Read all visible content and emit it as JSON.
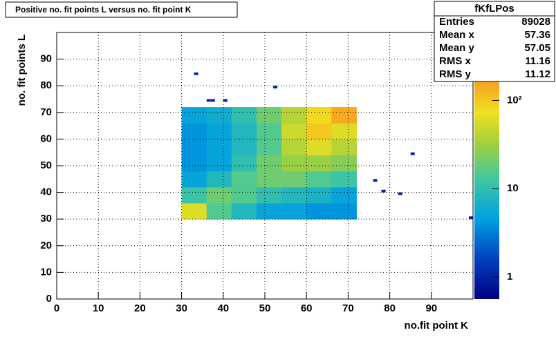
{
  "chart_data": {
    "type": "heatmap",
    "title": "Positive no. fit points L versus no. fit point K",
    "xlabel": "no.fit point K",
    "ylabel": "no. fit points  L",
    "xlim": [
      0,
      100
    ],
    "ylim": [
      0,
      100
    ],
    "xticks": [
      0,
      10,
      20,
      30,
      40,
      50,
      60,
      70,
      80,
      90
    ],
    "yticks": [
      0,
      10,
      20,
      30,
      40,
      50,
      60,
      70,
      80,
      90
    ],
    "grid": true,
    "zlog": true,
    "zlim": [
      0.56,
      590
    ],
    "zticks": [
      1,
      10,
      {
        "value": 100,
        "label": "10²"
      }
    ],
    "xbins": [
      30,
      36,
      42,
      48,
      54,
      60,
      66,
      72
    ],
    "ybins": [
      30,
      36,
      42,
      48,
      54,
      60,
      66,
      72
    ],
    "z": [
      [
        60,
        15,
        8,
        5,
        5,
        4,
        4
      ],
      [
        12,
        20,
        15,
        10,
        8,
        7,
        5
      ],
      [
        5,
        8,
        15,
        20,
        20,
        15,
        12
      ],
      [
        4,
        5,
        10,
        20,
        30,
        30,
        25
      ],
      [
        4,
        5,
        8,
        15,
        40,
        60,
        40
      ],
      [
        4,
        5,
        8,
        15,
        50,
        100,
        60
      ],
      [
        5,
        6,
        10,
        20,
        40,
        80,
        150
      ]
    ],
    "points": [
      {
        "x": 33,
        "y": 84,
        "value": 1
      },
      {
        "x": 36,
        "y": 74,
        "value": 1
      },
      {
        "x": 37,
        "y": 74,
        "value": 1
      },
      {
        "x": 40,
        "y": 74,
        "value": 1
      },
      {
        "x": 52,
        "y": 79,
        "value": 1
      },
      {
        "x": 76,
        "y": 44,
        "value": 1
      },
      {
        "x": 78,
        "y": 40,
        "value": 1
      },
      {
        "x": 82,
        "y": 39,
        "value": 1
      },
      {
        "x": 85,
        "y": 54,
        "value": 1
      },
      {
        "x": 99,
        "y": 30,
        "value": 1
      }
    ],
    "stats": {
      "title": "fKfLPos",
      "rows": [
        [
          "Entries",
          89028
        ],
        [
          "Mean x",
          57.36
        ],
        [
          "Mean y",
          57.05
        ],
        [
          "RMS x",
          11.16
        ],
        [
          "RMS y",
          11.12
        ]
      ]
    }
  }
}
